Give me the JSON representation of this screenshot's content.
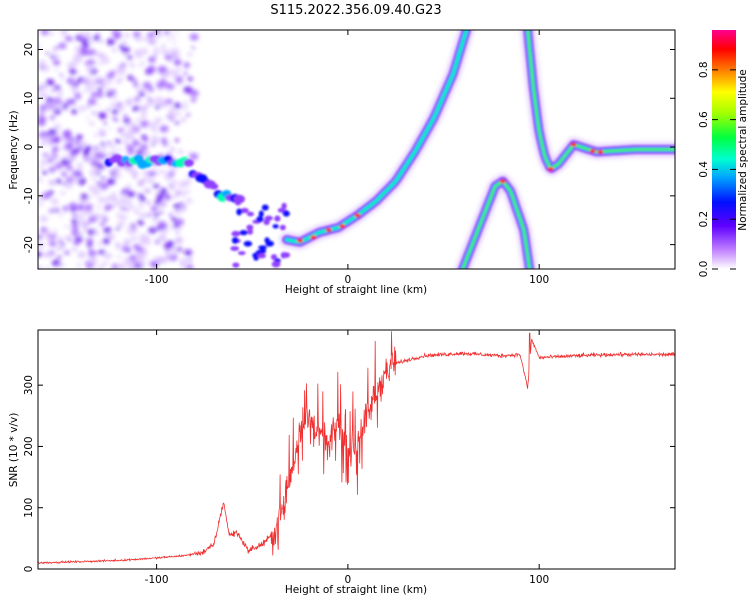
{
  "title": "S115.2022.356.09.40.G23",
  "chart_data": [
    {
      "type": "heatmap",
      "xlabel": "Height of straight line (km)",
      "ylabel": "Frequency (Hz)",
      "xlim": [
        -162,
        171
      ],
      "ylim": [
        -25,
        24
      ],
      "xticks": [
        -100,
        0,
        100
      ],
      "yticks": [
        -20,
        -10,
        0,
        10,
        20
      ],
      "colorbar": {
        "label": "Normalized spectral amplitude",
        "range": [
          0,
          0.96
        ],
        "ticks": [
          0.0,
          0.2,
          0.4,
          0.6,
          0.8
        ],
        "colormap": [
          "#ffffff",
          "#8000ff",
          "#0000ff",
          "#00c0ff",
          "#00ff80",
          "#40ff00",
          "#ffff00",
          "#ff8000",
          "#ff0000",
          "#ff0080"
        ]
      },
      "ridges": [
        {
          "name": "main-arc",
          "x": [
            -32,
            -25,
            -15,
            -5,
            5,
            15,
            25,
            35,
            45,
            55,
            62
          ],
          "y": [
            -19,
            -19.5,
            -17.5,
            -16.5,
            -14,
            -11,
            -7,
            -1,
            6,
            15,
            24
          ]
        },
        {
          "name": "early-band",
          "x": [
            -125,
            -110,
            -95,
            -85,
            -75,
            -65,
            -55
          ],
          "y": [
            -3,
            -3,
            -2.5,
            -3.5,
            -7,
            -10,
            -10.5
          ]
        },
        {
          "name": "returning-branch",
          "x": [
            94,
            97,
            100,
            103,
            106,
            110,
            118,
            130,
            150,
            171
          ],
          "y": [
            24,
            12,
            3,
            -2,
            -4.5,
            -3.5,
            0.5,
            -1,
            -0.5,
            -0.5
          ]
        },
        {
          "name": "lower-arch",
          "x": [
            60,
            70,
            77,
            81,
            85,
            92,
            95
          ],
          "y": [
            -25,
            -15,
            -8,
            -7,
            -9,
            -17,
            -25
          ]
        }
      ]
    },
    {
      "type": "line",
      "xlabel": "Height of straight line (km)",
      "ylabel": "SNR (10 * v/v)",
      "xlim": [
        -162,
        171
      ],
      "ylim": [
        0,
        390
      ],
      "xticks": [
        -100,
        0,
        100
      ],
      "yticks": [
        0,
        100,
        200,
        300
      ],
      "series": [
        {
          "color": "#f03030",
          "x": [
            -162,
            -140,
            -120,
            -100,
            -85,
            -75,
            -70,
            -65,
            -62,
            -58,
            -52,
            -45,
            -38,
            -30,
            -25,
            -20,
            -15,
            -10,
            -5,
            0,
            5,
            10,
            15,
            20,
            25,
            30,
            40,
            50,
            60,
            80,
            90,
            94,
            96,
            100,
            120,
            140,
            171
          ],
          "y": [
            10,
            12,
            14,
            18,
            22,
            28,
            40,
            110,
            55,
            60,
            30,
            40,
            60,
            150,
            230,
            250,
            220,
            200,
            240,
            190,
            210,
            250,
            290,
            320,
            335,
            340,
            348,
            350,
            352,
            348,
            350,
            295,
            375,
            345,
            348,
            350,
            350
          ]
        }
      ]
    }
  ]
}
